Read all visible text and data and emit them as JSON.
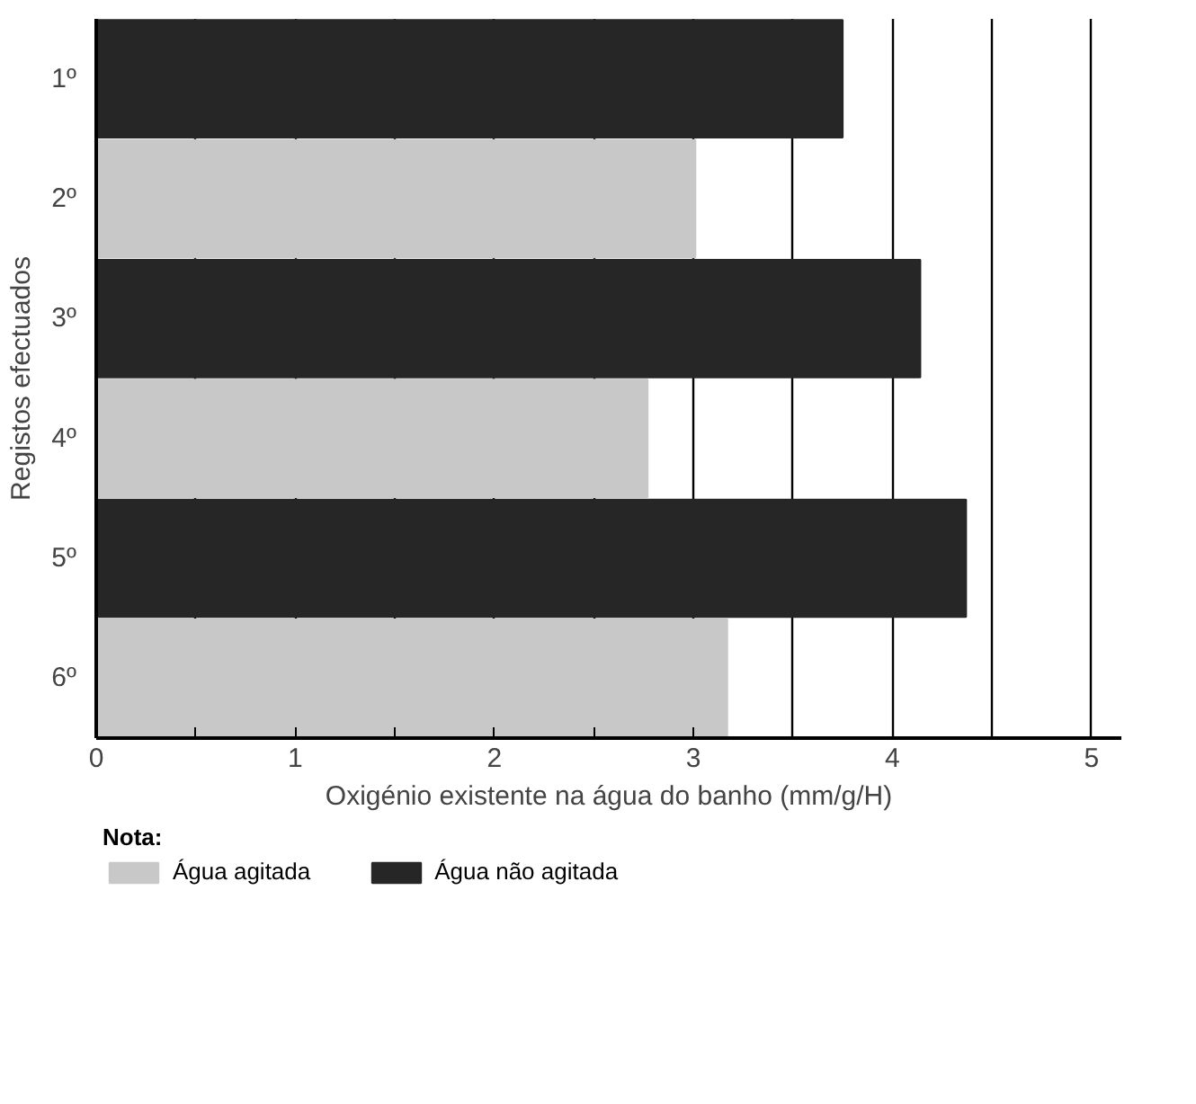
{
  "chart_data": {
    "type": "bar",
    "orientation": "horizontal",
    "categories": [
      "1º",
      "2º",
      "3º",
      "4º",
      "5º",
      "6º"
    ],
    "series": [
      {
        "name": "Água agitada",
        "color": "#c8c8c8",
        "values": [
          null,
          3.01,
          null,
          2.77,
          null,
          3.17
        ]
      },
      {
        "name": "Água não agitada",
        "color": "#262626",
        "values": [
          3.75,
          null,
          4.14,
          null,
          4.37,
          null
        ]
      }
    ],
    "xlabel": "Oxigénio existente na água do banho (mm/g/H)",
    "ylabel": "Registos efectuados",
    "legend_title": "Nota:",
    "legend": "bottom",
    "xlim": [
      0,
      5.15
    ],
    "xticks": [
      0,
      {
        "value": 0.5,
        "label": null
      },
      1,
      {
        "value": 1.5,
        "label": null
      },
      2,
      {
        "value": 2.5,
        "label": null
      },
      3,
      {
        "value": 3.5,
        "label": null
      },
      4,
      {
        "value": 4.5,
        "label": null
      },
      5
    ],
    "grid": "x"
  }
}
